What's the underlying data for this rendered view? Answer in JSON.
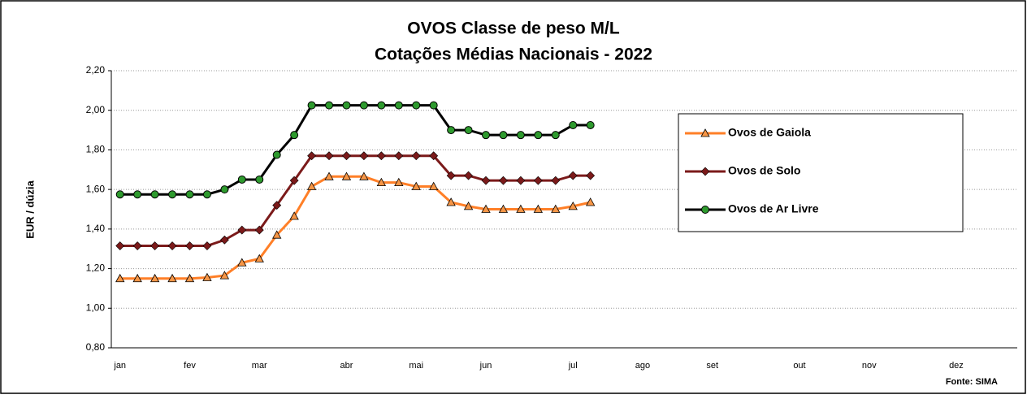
{
  "chart_data": {
    "type": "line",
    "title": "OVOS Classe de peso M/L",
    "subtitle": "Cotações Médias Nacionais - 2022",
    "y_label": "EUR / dúzia",
    "annotation": "Fonte: SIMA",
    "categories": [
      "jan",
      null,
      null,
      null,
      "fev",
      null,
      null,
      null,
      "mar",
      null,
      null,
      null,
      null,
      "abr",
      null,
      null,
      null,
      "mai",
      null,
      null,
      null,
      "jun",
      null,
      null,
      null,
      null,
      "jul",
      null,
      null,
      null,
      "ago",
      null,
      null,
      null,
      "set",
      null,
      null,
      null,
      null,
      "out",
      null,
      null,
      null,
      "nov",
      null,
      null,
      null,
      null,
      "dez",
      null,
      null,
      null
    ],
    "series": [
      {
        "name": "Ovos de Gaiola",
        "color": "#ff7f27",
        "marker": "triangle",
        "marker_color": "#f79646",
        "values": [
          1.15,
          1.15,
          1.15,
          1.15,
          1.15,
          1.155,
          1.165,
          1.23,
          1.25,
          1.37,
          1.465,
          1.615,
          1.665,
          1.665,
          1.665,
          1.635,
          1.635,
          1.615,
          1.615,
          1.535,
          1.515,
          1.5,
          1.5,
          1.5,
          1.5,
          1.5,
          1.515,
          1.535,
          null,
          null,
          null,
          null,
          null,
          null,
          null,
          null,
          null,
          null,
          null,
          null,
          null,
          null,
          null,
          null,
          null,
          null,
          null,
          null,
          null,
          null,
          null,
          null
        ]
      },
      {
        "name": "Ovos de Solo",
        "color": "#7b1a1a",
        "marker": "diamond",
        "marker_color": "#7b1a1a",
        "values": [
          1.315,
          1.315,
          1.315,
          1.315,
          1.315,
          1.315,
          1.345,
          1.395,
          1.395,
          1.52,
          1.645,
          1.77,
          1.77,
          1.77,
          1.77,
          1.77,
          1.77,
          1.77,
          1.77,
          1.67,
          1.67,
          1.645,
          1.645,
          1.645,
          1.645,
          1.645,
          1.67,
          1.67,
          null,
          null,
          null,
          null,
          null,
          null,
          null,
          null,
          null,
          null,
          null,
          null,
          null,
          null,
          null,
          null,
          null,
          null,
          null,
          null,
          null,
          null,
          null,
          null
        ]
      },
      {
        "name": "Ovos de Ar Livre",
        "color": "#000000",
        "marker": "circle",
        "marker_color": "#2e9a2e",
        "values": [
          1.575,
          1.575,
          1.575,
          1.575,
          1.575,
          1.575,
          1.6,
          1.65,
          1.65,
          1.775,
          1.875,
          2.025,
          2.025,
          2.025,
          2.025,
          2.025,
          2.025,
          2.025,
          2.025,
          1.9,
          1.9,
          1.875,
          1.875,
          1.875,
          1.875,
          1.875,
          1.925,
          1.925,
          null,
          null,
          null,
          null,
          null,
          null,
          null,
          null,
          null,
          null,
          null,
          null,
          null,
          null,
          null,
          null,
          null,
          null,
          null,
          null,
          null,
          null,
          null,
          null
        ]
      }
    ],
    "ylim": [
      0.8,
      2.2
    ],
    "yticks": [
      {
        "value": 0.8,
        "label": "0,80"
      },
      {
        "value": 1.0,
        "label": "1,00"
      },
      {
        "value": 1.2,
        "label": "1,20"
      },
      {
        "value": 1.4,
        "label": "1,40"
      },
      {
        "value": 1.6,
        "label": "1,60"
      },
      {
        "value": 1.8,
        "label": "1,80"
      },
      {
        "value": 2.0,
        "label": "2,00"
      },
      {
        "value": 2.2,
        "label": "2,20"
      }
    ],
    "grid": true
  }
}
